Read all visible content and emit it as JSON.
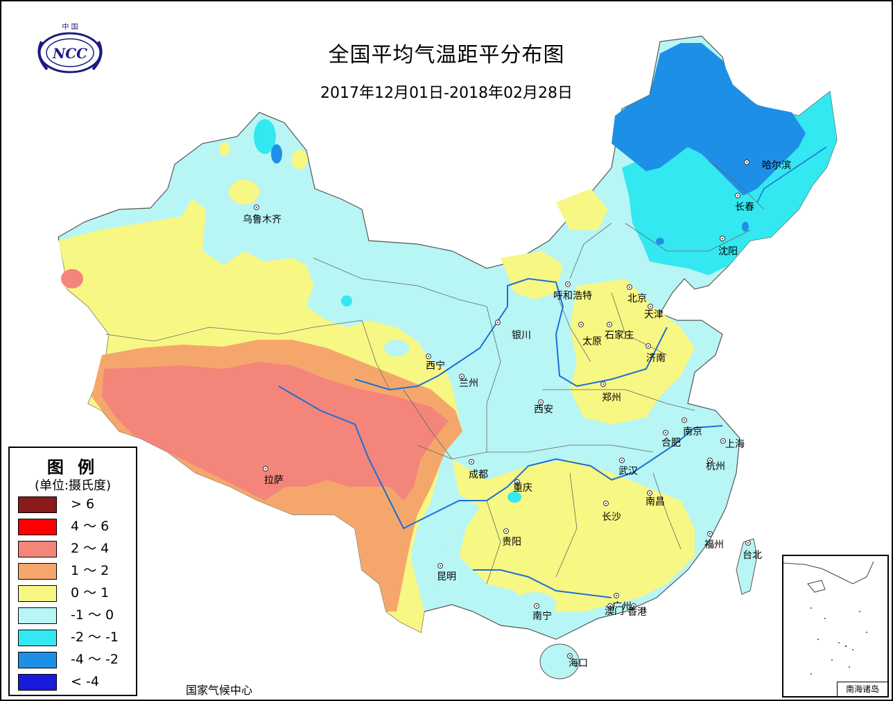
{
  "header": {
    "title": "全国平均气温距平分布图",
    "date_range": "2017年12月01日-2018年02月28日"
  },
  "logo": {
    "top_text": "中 国",
    "initials": "NCC"
  },
  "legend": {
    "title": "图 例",
    "unit": "(单位:摄氏度)",
    "items": [
      {
        "label": "> 6",
        "color": "#8b1a1a"
      },
      {
        "label": "4 ～ 6",
        "color": "#ff0000"
      },
      {
        "label": "2 ～ 4",
        "color": "#f4857a"
      },
      {
        "label": "1 ～ 2",
        "color": "#f5a76b"
      },
      {
        "label": "0 ～ 1",
        "color": "#f7f784"
      },
      {
        "label": "-1 ～ 0",
        "color": "#b8f5f5"
      },
      {
        "label": "-2 ～ -1",
        "color": "#33e8f0"
      },
      {
        "label": "-4 ～ -2",
        "color": "#1e8fe6"
      },
      {
        "label": "< -4",
        "color": "#1a1adb"
      }
    ]
  },
  "cities": [
    {
      "name": "乌鲁木齐"
    },
    {
      "name": "哈尔滨"
    },
    {
      "name": "长春"
    },
    {
      "name": "沈阳"
    },
    {
      "name": "呼和浩特"
    },
    {
      "name": "北京"
    },
    {
      "name": "天津"
    },
    {
      "name": "银川"
    },
    {
      "name": "石家庄"
    },
    {
      "name": "太原"
    },
    {
      "name": "济南"
    },
    {
      "name": "西宁"
    },
    {
      "name": "兰州"
    },
    {
      "name": "郑州"
    },
    {
      "name": "西安"
    },
    {
      "name": "南京"
    },
    {
      "name": "合肥"
    },
    {
      "name": "上海"
    },
    {
      "name": "拉萨"
    },
    {
      "name": "成都"
    },
    {
      "name": "武汉"
    },
    {
      "name": "杭州"
    },
    {
      "name": "重庆"
    },
    {
      "name": "南昌"
    },
    {
      "name": "长沙"
    },
    {
      "name": "贵阳"
    },
    {
      "name": "福州"
    },
    {
      "name": "台北"
    },
    {
      "name": "昆明"
    },
    {
      "name": "广州"
    },
    {
      "name": "南宁"
    },
    {
      "name": "澳门"
    },
    {
      "name": "香港"
    },
    {
      "name": "海口"
    }
  ],
  "inset": {
    "label": "南海诸岛"
  },
  "footer": {
    "source": "国家气候中心"
  }
}
